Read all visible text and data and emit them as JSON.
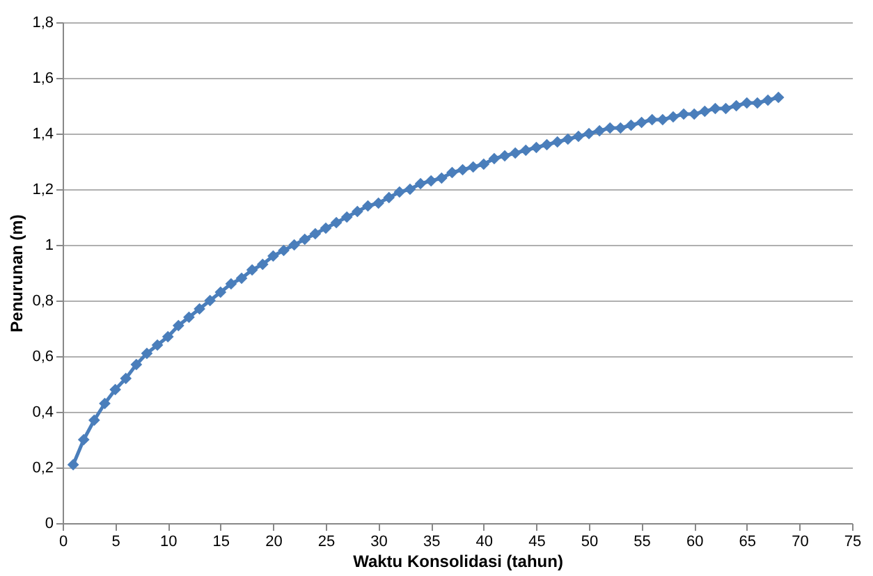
{
  "chart_data": {
    "type": "line",
    "xlabel": "Waktu Konsolidasi (tahun)",
    "ylabel": "Penurunan (m)",
    "x": [
      1,
      2,
      3,
      4,
      5,
      6,
      7,
      8,
      9,
      10,
      11,
      12,
      13,
      14,
      15,
      16,
      17,
      18,
      19,
      20,
      21,
      22,
      23,
      24,
      25,
      26,
      27,
      28,
      29,
      30,
      31,
      32,
      33,
      34,
      35,
      36,
      37,
      38,
      39,
      40,
      41,
      42,
      43,
      44,
      45,
      46,
      47,
      48,
      49,
      50,
      51,
      52,
      53,
      54,
      55,
      56,
      57,
      58,
      59,
      60,
      61,
      62,
      63,
      64,
      65,
      66,
      67,
      68
    ],
    "series": [
      {
        "color": "#4a7ebb",
        "values": [
          0.21,
          0.3,
          0.37,
          0.43,
          0.48,
          0.52,
          0.57,
          0.61,
          0.64,
          0.67,
          0.71,
          0.74,
          0.77,
          0.8,
          0.83,
          0.86,
          0.88,
          0.91,
          0.93,
          0.96,
          0.98,
          1.0,
          1.02,
          1.04,
          1.06,
          1.08,
          1.1,
          1.12,
          1.14,
          1.15,
          1.17,
          1.19,
          1.2,
          1.22,
          1.23,
          1.24,
          1.26,
          1.27,
          1.28,
          1.29,
          1.31,
          1.32,
          1.33,
          1.34,
          1.35,
          1.36,
          1.37,
          1.38,
          1.39,
          1.4,
          1.41,
          1.42,
          1.42,
          1.43,
          1.44,
          1.45,
          1.45,
          1.46,
          1.47,
          1.47,
          1.48,
          1.49,
          1.49,
          1.5,
          1.51,
          1.51,
          1.52,
          1.53
        ]
      }
    ],
    "xlim": [
      0,
      75
    ],
    "xticks": [
      0,
      5,
      10,
      15,
      20,
      25,
      30,
      35,
      40,
      45,
      50,
      55,
      60,
      65,
      70,
      75
    ],
    "ylim": [
      0,
      1.8
    ],
    "yticks": [
      0,
      {
        "value": 0.2,
        "label": "0,2"
      },
      {
        "value": 0.4,
        "label": "0,4"
      },
      {
        "value": 0.6,
        "label": "0,6"
      },
      {
        "value": 0.8,
        "label": "0,8"
      },
      1,
      {
        "value": 1.2,
        "label": "1,2"
      },
      {
        "value": 1.4,
        "label": "1,4"
      },
      {
        "value": 1.6,
        "label": "1,6"
      },
      {
        "value": 1.8,
        "label": "1,8"
      }
    ],
    "grid": "y",
    "marker": "diamond",
    "line_style": "solid"
  }
}
